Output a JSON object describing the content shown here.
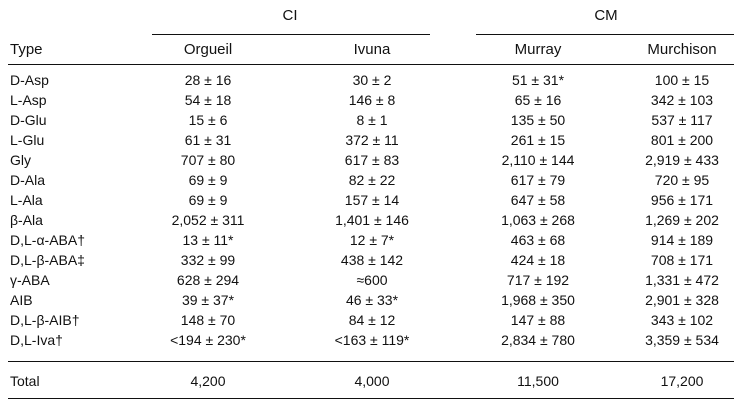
{
  "groups": [
    {
      "label": "CI"
    },
    {
      "label": "CM"
    }
  ],
  "columns": {
    "type": "Type",
    "orgueil": "Orgueil",
    "ivuna": "Ivuna",
    "murray": "Murray",
    "murchison": "Murchison"
  },
  "rows": [
    {
      "type": "D-Asp",
      "orgueil": "28 ± 16",
      "ivuna": "30 ± 2",
      "murray": "51 ± 31*",
      "murchison": "100 ± 15"
    },
    {
      "type": "L-Asp",
      "orgueil": "54 ± 18",
      "ivuna": "146 ± 8",
      "murray": "65 ± 16",
      "murchison": "342 ± 103"
    },
    {
      "type": "D-Glu",
      "orgueil": "15 ± 6",
      "ivuna": "8 ± 1",
      "murray": "135 ± 50",
      "murchison": "537 ± 117"
    },
    {
      "type": "L-Glu",
      "orgueil": "61 ± 31",
      "ivuna": "372 ± 11",
      "murray": "261 ± 15",
      "murchison": "801 ± 200"
    },
    {
      "type": "Gly",
      "orgueil": "707 ± 80",
      "ivuna": "617 ± 83",
      "murray": "2,110 ± 144",
      "murchison": "2,919 ± 433"
    },
    {
      "type": "D-Ala",
      "orgueil": "69 ± 9",
      "ivuna": "82 ± 22",
      "murray": "617 ± 79",
      "murchison": "720 ± 95"
    },
    {
      "type": "L-Ala",
      "orgueil": "69 ± 9",
      "ivuna": "157 ± 14",
      "murray": "647 ± 58",
      "murchison": "956 ± 171"
    },
    {
      "type": "β-Ala",
      "orgueil": "2,052 ± 311",
      "ivuna": "1,401 ± 146",
      "murray": "1,063 ± 268",
      "murchison": "1,269 ± 202"
    },
    {
      "type": "D,L-α-ABA†",
      "orgueil": "13 ± 11*",
      "ivuna": "12 ± 7*",
      "murray": "463 ± 68",
      "murchison": "914 ± 189"
    },
    {
      "type": "D,L-β-ABA‡",
      "orgueil": "332 ± 99",
      "ivuna": "438 ± 142",
      "murray": "424 ± 18",
      "murchison": "708 ± 171"
    },
    {
      "type": "γ-ABA",
      "orgueil": "628 ± 294",
      "ivuna": "≈600",
      "murray": "717 ± 192",
      "murchison": "1,331 ± 472"
    },
    {
      "type": "AIB",
      "orgueil": "39 ± 37*",
      "ivuna": "46 ± 33*",
      "murray": "1,968 ± 350",
      "murchison": "2,901 ± 328"
    },
    {
      "type": "D,L-β-AIB†",
      "orgueil": "148 ± 70",
      "ivuna": "84 ± 12",
      "murray": "147 ± 88",
      "murchison": "343 ± 102"
    },
    {
      "type": "D,L-Iva†",
      "orgueil": "<194 ± 230*",
      "ivuna": "<163 ± 119*",
      "murray": "2,834 ± 780",
      "murchison": "3,359 ± 534"
    }
  ],
  "total": {
    "type": "Total",
    "orgueil": "4,200",
    "ivuna": "4,000",
    "murray": "11,500",
    "murchison": "17,200"
  }
}
